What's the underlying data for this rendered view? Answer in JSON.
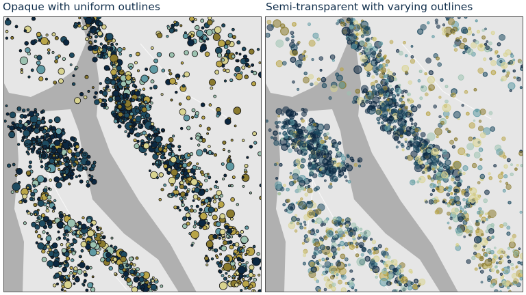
{
  "panels": [
    {
      "title": "Opaque with uniform outlines"
    },
    {
      "title": "Semi-transparent with varying outlines"
    }
  ]
}
